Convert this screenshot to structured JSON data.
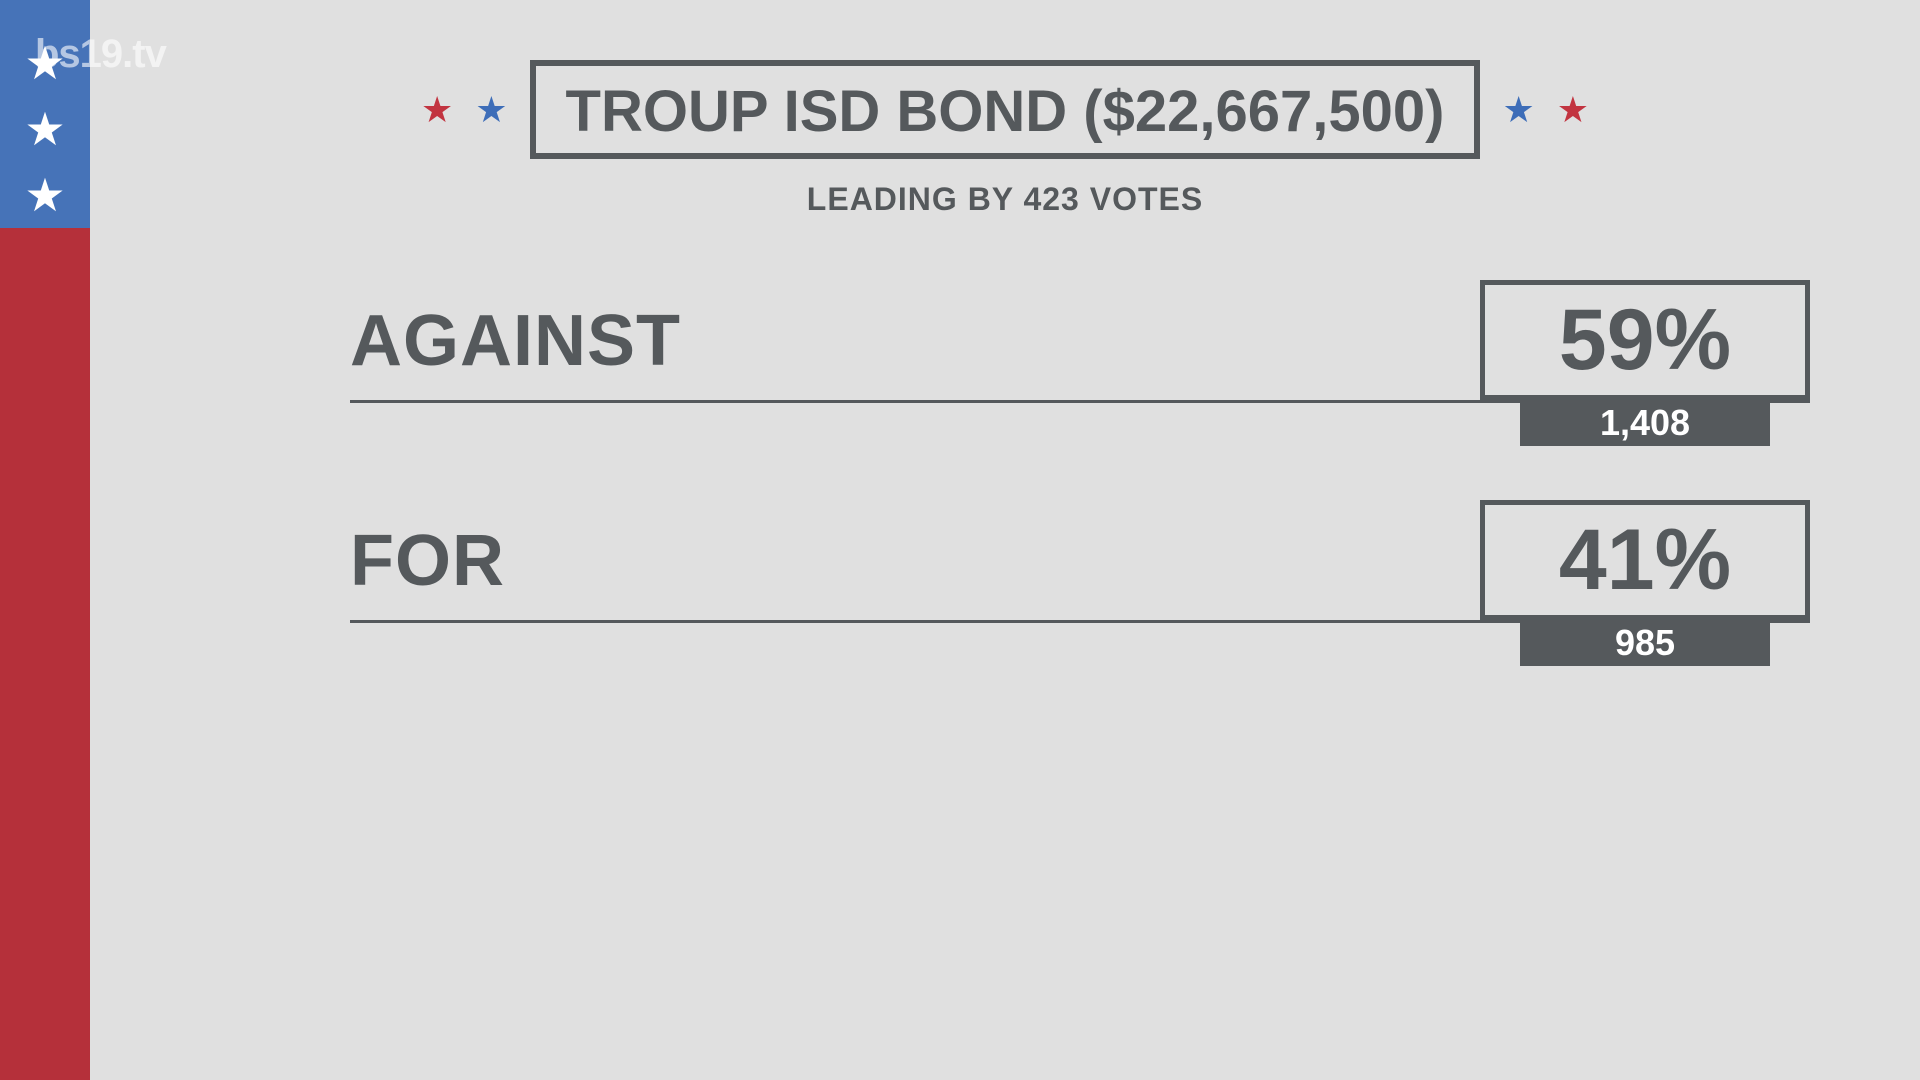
{
  "colors": {
    "bg": "#e0e0e0",
    "stripe_blue": "#4673b8",
    "stripe_red": "#b5303a",
    "star_red": "#c23440",
    "star_blue": "#3d6db8",
    "text_dark": "#55595c",
    "line": "#55595c",
    "white": "#ffffff"
  },
  "watermark": "bs19.tv",
  "header": {
    "title": "TROUP ISD BOND ($22,667,500)",
    "title_fontsize": 58,
    "subtitle": "LEADING BY 423 VOTES",
    "subtitle_fontsize": 32
  },
  "results": [
    {
      "label": "AGAINST",
      "pct": "59%",
      "votes": "1,408"
    },
    {
      "label": "FOR",
      "pct": "41%",
      "votes": "985"
    }
  ],
  "styles": {
    "label_fontsize": 72,
    "pct_fontsize": 86,
    "votes_fontsize": 36
  }
}
